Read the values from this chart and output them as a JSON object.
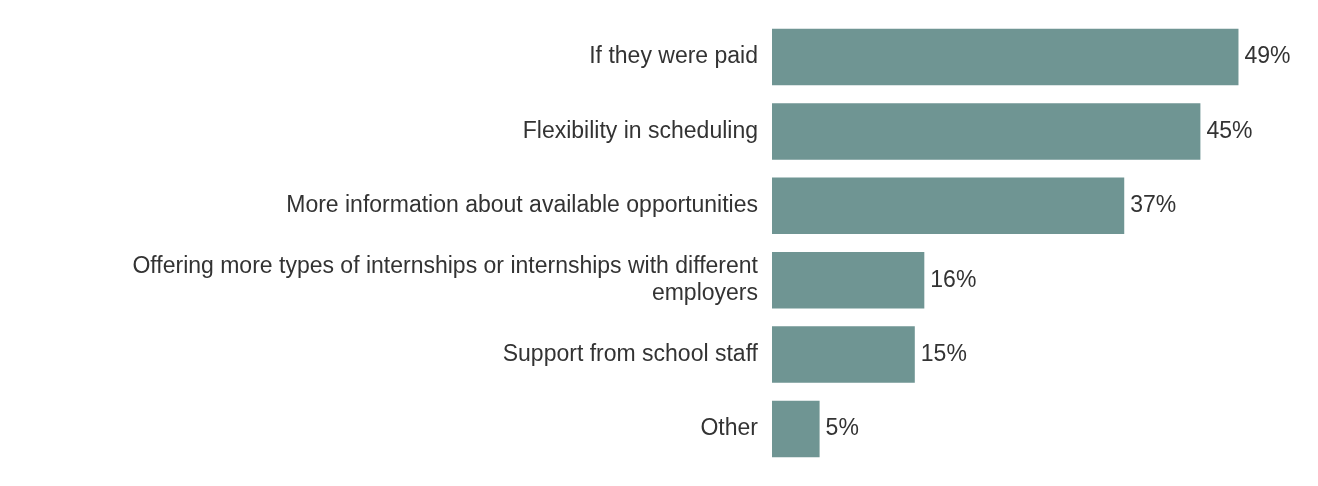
{
  "chart_data": {
    "type": "bar",
    "orientation": "horizontal",
    "categories": [
      "If they were paid",
      "Flexibility in scheduling",
      "More information about available opportunities",
      "Offering more types of internships or internships with different employers",
      "Support from school staff",
      "Other"
    ],
    "values": [
      49,
      45,
      37,
      16,
      15,
      5
    ],
    "value_labels": [
      "49%",
      "45%",
      "37%",
      "16%",
      "15%",
      "5%"
    ],
    "color": "#6f9593"
  }
}
